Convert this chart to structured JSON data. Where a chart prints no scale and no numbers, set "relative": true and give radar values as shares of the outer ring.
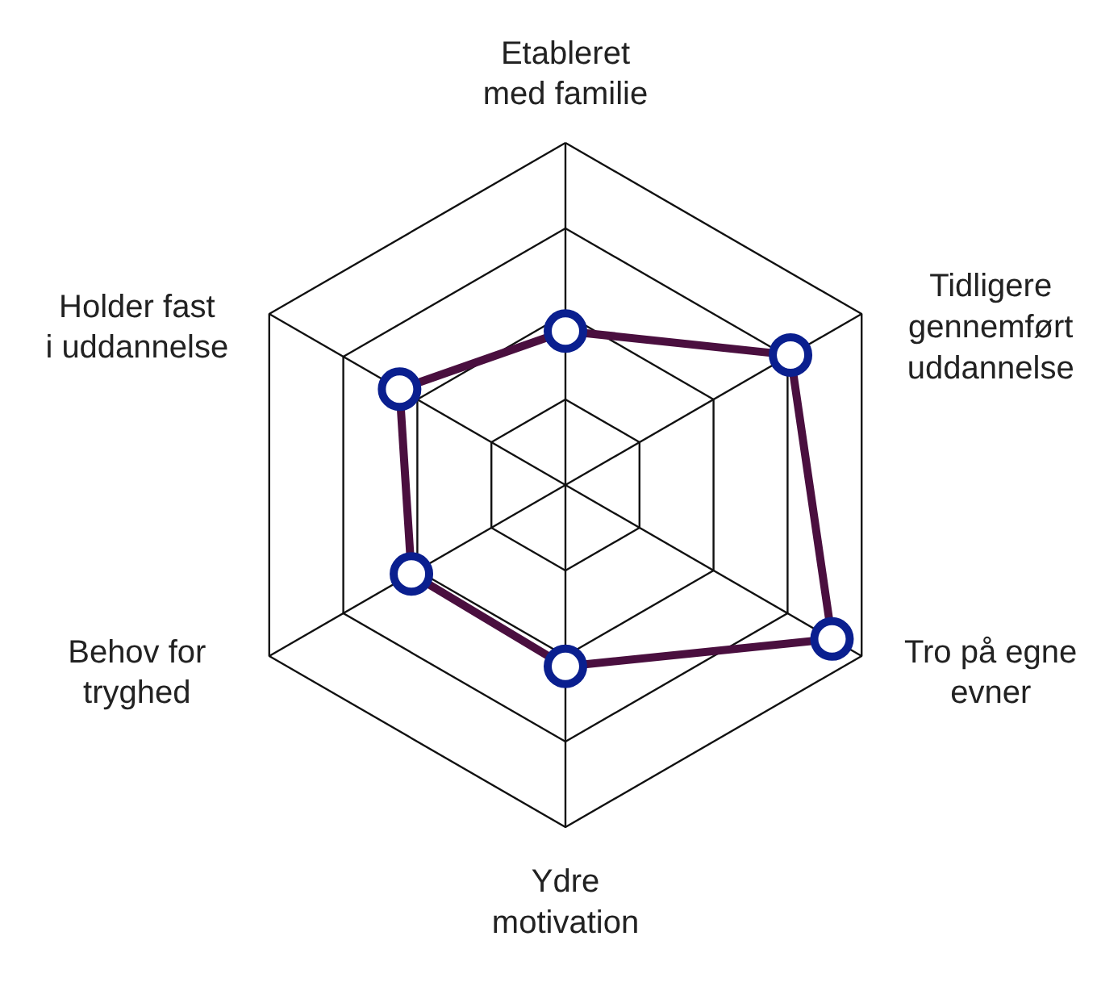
{
  "chart_data": {
    "type": "radar",
    "relative": true,
    "grid": true,
    "marker": "circle",
    "line_style": "solid",
    "categories": [
      "Etableret\nmed familie",
      "Tidligere\ngennemført\nuddannelse",
      "Tro på egne\nevner",
      "Ydre\nmotivation",
      "Behov for\ntryghed",
      "Holder fast\ni uddannelse"
    ],
    "series": [
      {
        "color": "#4a0f3f",
        "values": [
          0.45,
          0.76,
          0.9,
          0.53,
          0.52,
          0.56
        ]
      }
    ]
  }
}
